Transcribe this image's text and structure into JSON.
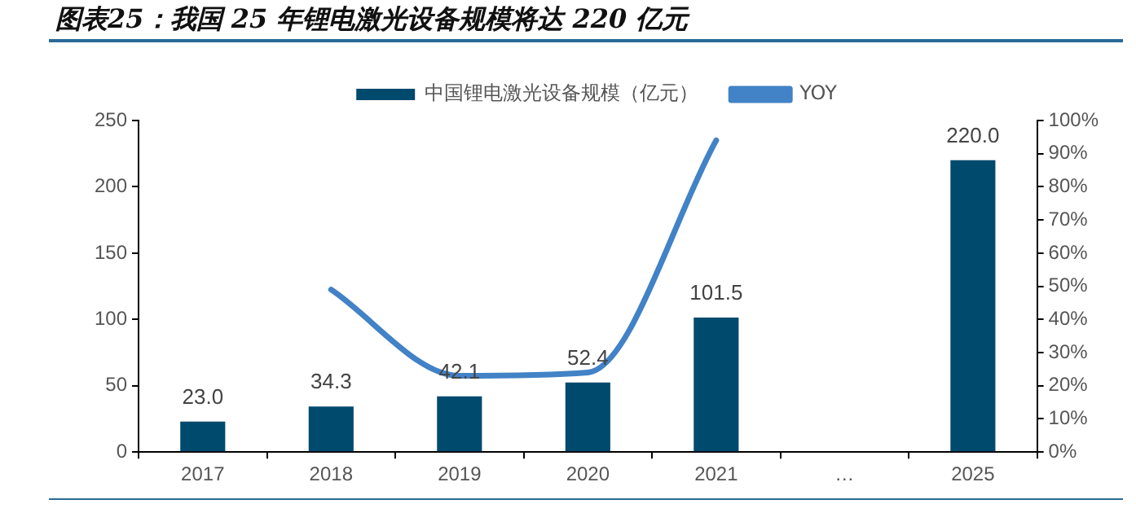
{
  "chart_data": {
    "type": "bar",
    "title": "图表25：我国 25 年锂电激光设备规模将达 220 亿元",
    "categories": [
      "2017",
      "2018",
      "2019",
      "2020",
      "2021",
      "…",
      "2025"
    ],
    "series": [
      {
        "name": "中国锂电激光设备规模（亿元）",
        "color": "#004a6e",
        "values": [
          23,
          34.3,
          42.1,
          52.4,
          101.5,
          null,
          220
        ],
        "value_labels": [
          "23.0",
          "34.3",
          "42.1",
          "52.4",
          "101.5",
          null,
          "220.0"
        ]
      },
      {
        "name": "YOY",
        "type": "line",
        "axis": "y2",
        "color": "#4282c6",
        "values": [
          null,
          49,
          23,
          24,
          94,
          null,
          null
        ]
      }
    ],
    "ylim": [
      0,
      250
    ],
    "yticks": [
      0,
      50,
      100,
      150,
      200,
      250
    ],
    "y2lim": [
      0,
      100
    ],
    "y2ticks": [
      {
        "value": 0,
        "label": "0%"
      },
      {
        "value": 10,
        "label": "10%"
      },
      {
        "value": 20,
        "label": "20%"
      },
      {
        "value": 30,
        "label": "30%"
      },
      {
        "value": 40,
        "label": "40%"
      },
      {
        "value": 50,
        "label": "50%"
      },
      {
        "value": 60,
        "label": "60%"
      },
      {
        "value": 70,
        "label": "70%"
      },
      {
        "value": 80,
        "label": "80%"
      },
      {
        "value": 90,
        "label": "90%"
      },
      {
        "value": 100,
        "label": "100%"
      }
    ],
    "grid": false,
    "legend": "top",
    "marker": "none",
    "line_style": "solid"
  }
}
